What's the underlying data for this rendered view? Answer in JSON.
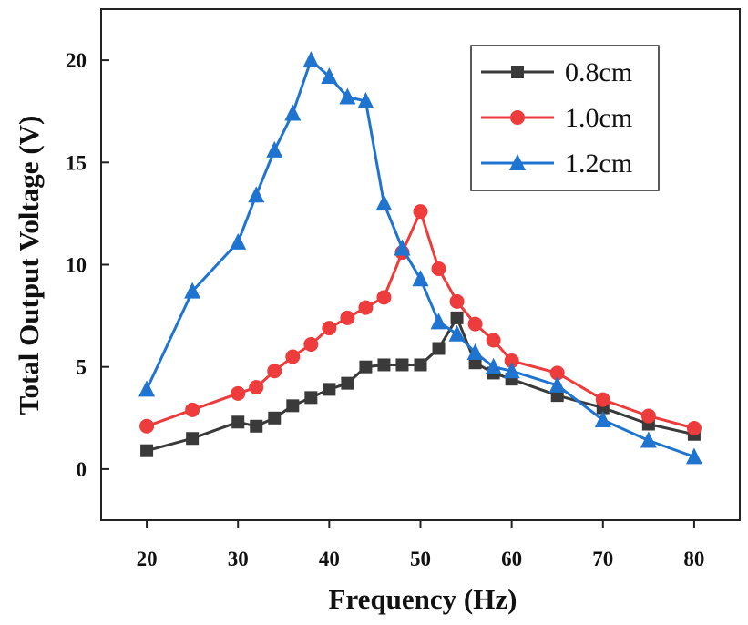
{
  "chart_data": {
    "type": "line",
    "title": "",
    "xlabel": "Frequency (Hz)",
    "ylabel": "Total Output Voltage (V)",
    "xlim": [
      15,
      85
    ],
    "ylim": [
      -2.5,
      22.5
    ],
    "xticks": [
      20,
      30,
      40,
      50,
      60,
      70,
      80
    ],
    "yticks": [
      0,
      5,
      10,
      15,
      20
    ],
    "grid": false,
    "legend_position": "top-right",
    "series": [
      {
        "name": "0.8cm",
        "color": "#3a3a3a",
        "marker": "square",
        "x": [
          20,
          25,
          30,
          32,
          34,
          36,
          38,
          40,
          42,
          44,
          46,
          48,
          50,
          52,
          54,
          56,
          58,
          60,
          65,
          70,
          75,
          80
        ],
        "y": [
          0.9,
          1.5,
          2.3,
          2.1,
          2.5,
          3.1,
          3.5,
          3.9,
          4.2,
          5.0,
          5.1,
          5.1,
          5.1,
          5.9,
          7.4,
          5.2,
          4.7,
          4.4,
          3.6,
          3.0,
          2.2,
          1.7
        ]
      },
      {
        "name": "1.0cm",
        "color": "#ee3b3b",
        "marker": "circle",
        "x": [
          20,
          25,
          30,
          32,
          34,
          36,
          38,
          40,
          42,
          44,
          46,
          48,
          50,
          52,
          54,
          56,
          58,
          60,
          65,
          70,
          75,
          80
        ],
        "y": [
          2.1,
          2.9,
          3.7,
          4.0,
          4.8,
          5.5,
          6.1,
          6.9,
          7.4,
          7.9,
          8.4,
          10.6,
          12.6,
          9.8,
          8.2,
          7.1,
          6.3,
          5.3,
          4.7,
          3.4,
          2.6,
          2.0
        ]
      },
      {
        "name": "1.2cm",
        "color": "#1f74d0",
        "marker": "triangle",
        "x": [
          20,
          25,
          30,
          32,
          34,
          36,
          38,
          40,
          42,
          44,
          46,
          48,
          50,
          52,
          54,
          56,
          58,
          60,
          65,
          70,
          75,
          80
        ],
        "y": [
          3.9,
          8.7,
          11.1,
          13.4,
          15.6,
          17.4,
          20.0,
          19.2,
          18.2,
          18.0,
          13.0,
          10.8,
          9.3,
          7.2,
          6.6,
          5.7,
          5.0,
          4.8,
          4.1,
          2.4,
          1.4,
          0.6
        ]
      }
    ]
  }
}
